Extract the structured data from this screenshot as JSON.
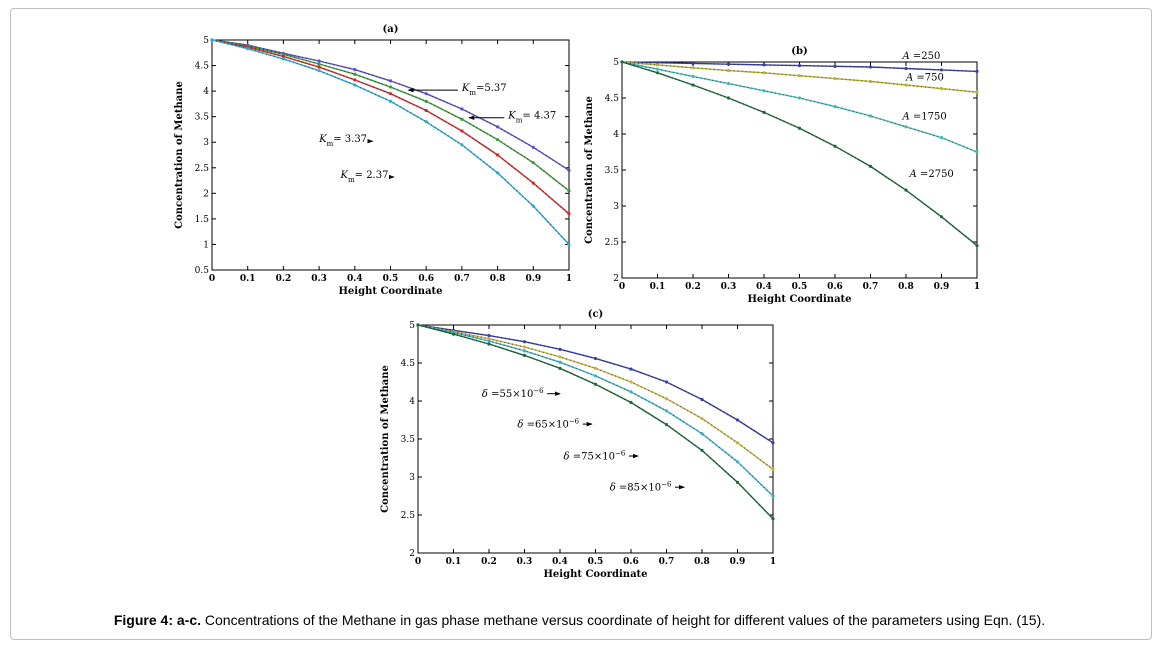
{
  "caption": {
    "label": "Figure 4: a-c.",
    "text": "Concentrations of the Methane in gas phase methane versus coordinate of height for different values of the parameters using Eqn. (15)."
  },
  "chart_data": [
    {
      "panel": "(a)",
      "type": "line",
      "xlabel": "Height Coordinate",
      "ylabel": "Concentration of Methane",
      "xlim": [
        0,
        1
      ],
      "ylim": [
        0.5,
        5
      ],
      "xticks": [
        "0",
        "0.1",
        "0.2",
        "0.3",
        "0.4",
        "0.5",
        "0.6",
        "0.7",
        "0.8",
        "0.9",
        "1"
      ],
      "yticks": [
        "0.5",
        "1",
        "1.5",
        "2",
        "2.5",
        "3",
        "3.5",
        "4",
        "4.5",
        "5"
      ],
      "x": [
        0,
        0.1,
        0.2,
        0.3,
        0.4,
        0.5,
        0.6,
        0.7,
        0.8,
        0.9,
        1
      ],
      "series": [
        {
          "name": "Km=5.37",
          "color": "#5a4fcf",
          "values": [
            5,
            4.9,
            4.74,
            4.59,
            4.42,
            4.2,
            3.95,
            3.65,
            3.3,
            2.9,
            2.45
          ]
        },
        {
          "name": "Km= 4.37",
          "color": "#3a9a3a",
          "values": [
            5,
            4.88,
            4.72,
            4.53,
            4.33,
            4.08,
            3.8,
            3.45,
            3.05,
            2.6,
            2.05
          ]
        },
        {
          "name": "Km= 3.37",
          "color": "#d02a2a",
          "values": [
            5,
            4.86,
            4.68,
            4.47,
            4.22,
            3.95,
            3.62,
            3.22,
            2.75,
            2.2,
            1.6
          ]
        },
        {
          "name": "Km= 2.37",
          "color": "#2aaed8",
          "values": [
            5,
            4.83,
            4.63,
            4.4,
            4.12,
            3.8,
            3.4,
            2.95,
            2.4,
            1.75,
            1.0
          ]
        }
      ],
      "annotations": [
        {
          "main": "K",
          "sub": "m",
          "rest": "=5.37",
          "tx": 0.7,
          "ty": 4.0,
          "ax": 0.55,
          "ay": 4.05
        },
        {
          "main": "K",
          "sub": "m",
          "rest": "= 4.37",
          "tx": 0.83,
          "ty": 3.46,
          "ax": 0.72,
          "ay": 3.46
        },
        {
          "main": "K",
          "sub": "m",
          "rest": "= 3.37",
          "tx": 0.3,
          "ty": 3.0,
          "ax": 0.45,
          "ay": 3.05
        },
        {
          "main": "K",
          "sub": "m",
          "rest": "= 2.37",
          "tx": 0.36,
          "ty": 2.3,
          "ax": 0.51,
          "ay": 2.33
        }
      ]
    },
    {
      "panel": "(b)",
      "type": "line",
      "xlabel": "Height Coordinate",
      "ylabel": "Concentration of Methane",
      "xlim": [
        0,
        1
      ],
      "ylim": [
        2,
        5
      ],
      "xticks": [
        "0",
        "0.1",
        "0.2",
        "0.3",
        "0.4",
        "0.5",
        "0.6",
        "0.7",
        "0.8",
        "0.9",
        "1"
      ],
      "yticks": [
        "2",
        "2.5",
        "3",
        "3.5",
        "4",
        "4.5",
        "5"
      ],
      "x": [
        0,
        0.1,
        0.2,
        0.3,
        0.4,
        0.5,
        0.6,
        0.7,
        0.8,
        0.9,
        1
      ],
      "series": [
        {
          "name": "A=250",
          "color": "#3a3fa8",
          "values": [
            5,
            4.99,
            4.98,
            4.97,
            4.96,
            4.95,
            4.94,
            4.93,
            4.91,
            4.89,
            4.87
          ]
        },
        {
          "name": "A=750",
          "color": "#b8b030",
          "values": [
            5,
            4.96,
            4.92,
            4.88,
            4.85,
            4.81,
            4.77,
            4.73,
            4.68,
            4.63,
            4.58
          ]
        },
        {
          "name": "A=1750",
          "color": "#3fb8b8",
          "values": [
            5,
            4.9,
            4.8,
            4.7,
            4.6,
            4.5,
            4.38,
            4.25,
            4.1,
            3.95,
            3.75
          ]
        },
        {
          "name": "A=2750",
          "color": "#1e6a3a",
          "values": [
            5,
            4.85,
            4.68,
            4.5,
            4.3,
            4.08,
            3.83,
            3.55,
            3.22,
            2.85,
            2.45
          ]
        }
      ],
      "annotations": [
        {
          "main": "A",
          "sub": "",
          "rest": " =250",
          "tx": 0.79,
          "ty": 5.04
        },
        {
          "main": "A",
          "sub": "",
          "rest": " =750",
          "tx": 0.8,
          "ty": 4.74
        },
        {
          "main": "A",
          "sub": "",
          "rest": " =1750",
          "tx": 0.79,
          "ty": 4.2
        },
        {
          "main": "A",
          "sub": "",
          "rest": " =2750",
          "tx": 0.81,
          "ty": 3.4
        }
      ]
    },
    {
      "panel": "(c)",
      "type": "line",
      "xlabel": "Height Coordinate",
      "ylabel": "Concentration of Methane",
      "xlim": [
        0,
        1
      ],
      "ylim": [
        2,
        5
      ],
      "xticks": [
        "0",
        "0.1",
        "0.2",
        "0.3",
        "0.4",
        "0.5",
        "0.6",
        "0.7",
        "0.8",
        "0.9",
        "1"
      ],
      "yticks": [
        "2",
        "2.5",
        "3",
        "3.5",
        "4",
        "4.5",
        "5"
      ],
      "x": [
        0,
        0.1,
        0.2,
        0.3,
        0.4,
        0.5,
        0.6,
        0.7,
        0.8,
        0.9,
        1
      ],
      "series": [
        {
          "name": "δ=55×10^-6",
          "color": "#3a3fa8",
          "values": [
            5,
            4.93,
            4.86,
            4.78,
            4.68,
            4.56,
            4.42,
            4.25,
            4.02,
            3.75,
            3.45
          ]
        },
        {
          "name": "δ=65×10^-6",
          "color": "#c8b040",
          "values": [
            5,
            4.91,
            4.82,
            4.71,
            4.58,
            4.43,
            4.25,
            4.03,
            3.77,
            3.45,
            3.1
          ]
        },
        {
          "name": "δ=75×10^-6",
          "color": "#3ab0c8",
          "values": [
            5,
            4.9,
            4.79,
            4.66,
            4.51,
            4.33,
            4.12,
            3.87,
            3.57,
            3.2,
            2.75
          ]
        },
        {
          "name": "δ=85×10^-6",
          "color": "#1e6a3a",
          "values": [
            5,
            4.88,
            4.75,
            4.6,
            4.43,
            4.22,
            3.98,
            3.69,
            3.35,
            2.93,
            2.45
          ]
        }
      ],
      "annotations": [
        {
          "main": "δ",
          "rest": " =55×10",
          "sup": "−6",
          "tx": 0.18,
          "ty": 4.05,
          "ax": 0.4,
          "ay": 4.07
        },
        {
          "main": "δ",
          "rest": " =65×10",
          "sup": "−6",
          "tx": 0.28,
          "ty": 3.65,
          "ax": 0.49,
          "ay": 3.67
        },
        {
          "main": "δ",
          "rest": " =75×10",
          "sup": "−6",
          "tx": 0.41,
          "ty": 3.23,
          "ax": 0.62,
          "ay": 3.25
        },
        {
          "main": "δ",
          "rest": " =85×10",
          "sup": "−6",
          "tx": 0.54,
          "ty": 2.82,
          "ax": 0.75,
          "ay": 2.84
        }
      ]
    }
  ]
}
